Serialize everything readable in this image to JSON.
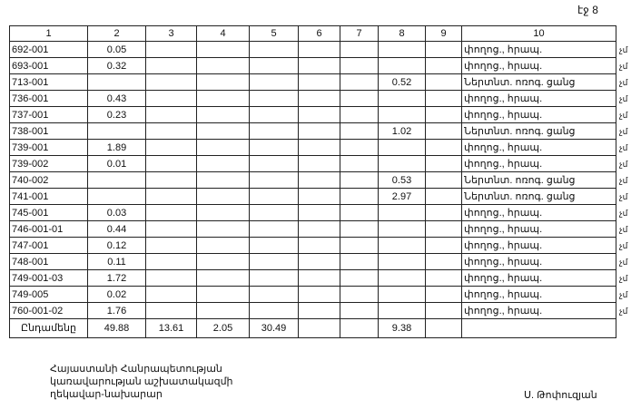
{
  "page_label": "էջ 8",
  "headers": [
    "1",
    "2",
    "3",
    "4",
    "5",
    "6",
    "7",
    "8",
    "9",
    "10"
  ],
  "rows": [
    {
      "code": "692-001",
      "c2": "0.05",
      "c8": "",
      "c10": "փողոց., հրապ."
    },
    {
      "code": "693-001",
      "c2": "0.32",
      "c8": "",
      "c10": "փողոց., հրապ."
    },
    {
      "code": "713-001",
      "c2": "",
      "c8": "0.52",
      "c10": "Ներտնտ. ոռոգ. ցանց"
    },
    {
      "code": "736-001",
      "c2": "0.43",
      "c8": "",
      "c10": "փողոց., հրապ."
    },
    {
      "code": "737-001",
      "c2": "0.23",
      "c8": "",
      "c10": "փողոց., հրապ."
    },
    {
      "code": "738-001",
      "c2": "",
      "c8": "1.02",
      "c10": "Ներտնտ. ոռոգ. ցանց"
    },
    {
      "code": "739-001",
      "c2": "1.89",
      "c8": "",
      "c10": "փողոց., հրապ."
    },
    {
      "code": "739-002",
      "c2": "0.01",
      "c8": "",
      "c10": "փողոց., հրապ."
    },
    {
      "code": "740-002",
      "c2": "",
      "c8": "0.53",
      "c10": "Ներտնտ. ոռոգ. ցանց"
    },
    {
      "code": "741-001",
      "c2": "",
      "c8": "2.97",
      "c10": "Ներտնտ. ոռոգ. ցանց"
    },
    {
      "code": "745-001",
      "c2": "0.03",
      "c8": "",
      "c10": "փողոց., հրապ."
    },
    {
      "code": "746-001-01",
      "c2": "0.44",
      "c8": "",
      "c10": "փողոց., հրապ."
    },
    {
      "code": "747-001",
      "c2": "0.12",
      "c8": "",
      "c10": "փողոց., հրապ."
    },
    {
      "code": "748-001",
      "c2": "0.11",
      "c8": "",
      "c10": "փողոց., հրապ."
    },
    {
      "code": "749-001-03",
      "c2": "1.72",
      "c8": "",
      "c10": "փողոց., հրապ."
    },
    {
      "code": "749-005",
      "c2": "0.02",
      "c8": "",
      "c10": "փողոց., հրապ."
    },
    {
      "code": "760-001-02",
      "c2": "1.76",
      "c8": "",
      "c10": "փողոց., հրապ."
    }
  ],
  "total": {
    "label": "Ընդամենը",
    "c2": "49.88",
    "c3": "13.61",
    "c4": "2.05",
    "c5": "30.49",
    "c6": "",
    "c7": "",
    "c8": "9.38",
    "c9": "",
    "c10": ""
  },
  "margin_mark": "չմ",
  "footer": {
    "line1": "Հայաստանի Հանրապետության",
    "line2": "կառավարության աշխատակազմի",
    "line3": "ղեկավար-նախարար",
    "signatory": "Ս. Թոփուզյան"
  }
}
